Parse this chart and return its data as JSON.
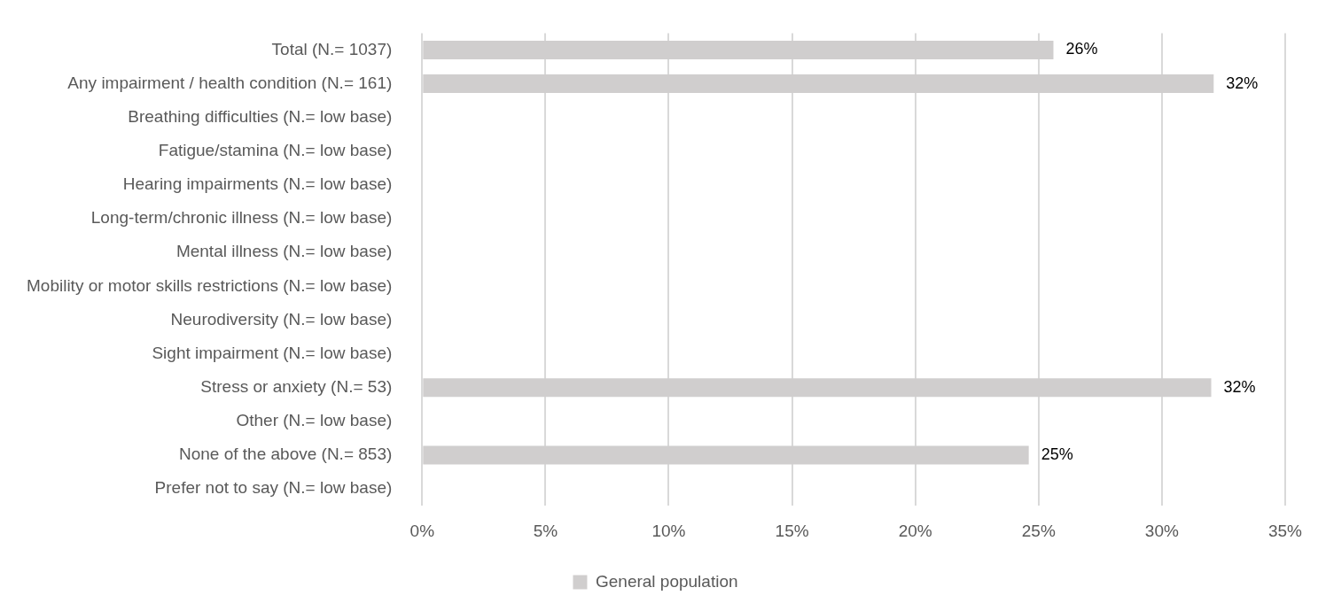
{
  "chart_data": {
    "type": "bar",
    "orientation": "horizontal",
    "categories": [
      "Total (N.= 1037)",
      "Any impairment / health condition (N.= 161)",
      "Breathing difficulties (N.= low base)",
      "Fatigue/stamina (N.= low base)",
      "Hearing impairments (N.= low base)",
      "Long-term/chronic illness (N.= low base)",
      "Mental illness (N.= low base)",
      "Mobility or motor skills restrictions (N.= low base)",
      "Neurodiversity (N.= low base)",
      "Sight impairment (N.= low base)",
      "Stress or anxiety (N.= 53)",
      "Other (N.= low base)",
      "None of the above (N.= 853)",
      "Prefer not to say (N.= low base)"
    ],
    "series": [
      {
        "name": "General population",
        "color": "#d0cece",
        "values": [
          25.6,
          32.1,
          null,
          null,
          null,
          null,
          null,
          null,
          null,
          null,
          32.0,
          null,
          24.6,
          null
        ],
        "value_labels": [
          "26%",
          "32%",
          null,
          null,
          null,
          null,
          null,
          null,
          null,
          null,
          "32%",
          null,
          "25%",
          null
        ]
      }
    ],
    "xlim": [
      0,
      35
    ],
    "xticks": [
      {
        "value": 0,
        "label": "0%"
      },
      {
        "value": 5,
        "label": "5%"
      },
      {
        "value": 10,
        "label": "10%"
      },
      {
        "value": 15,
        "label": "15%"
      },
      {
        "value": 20,
        "label": "20%"
      },
      {
        "value": 25,
        "label": "25%"
      },
      {
        "value": 30,
        "label": "30%"
      },
      {
        "value": 35,
        "label": "35%"
      }
    ],
    "grid": "x",
    "legend": "bottom"
  }
}
